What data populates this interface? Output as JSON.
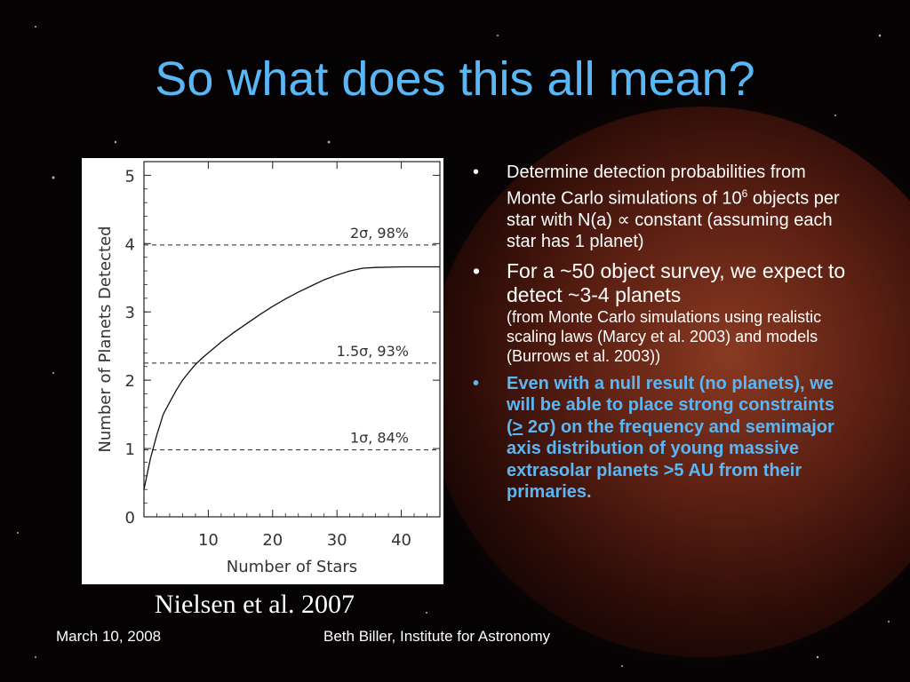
{
  "slide": {
    "title": "So what does this all mean?",
    "caption": "Nielsen et al. 2007",
    "footer_date": "March 10, 2008",
    "footer_author": "Beth Biller, Institute for Astronomy",
    "colors": {
      "title": "#5ab7f5",
      "highlight": "#5ab7f5",
      "background": "#050203"
    }
  },
  "bullets": {
    "b1_text_a": "Determine detection probabilities from Monte Carlo simulations of 10",
    "b1_sup": "6",
    "b1_text_b": " objects per star with N(a) ∝ constant (assuming each star has 1 planet)",
    "b2_main": "For a ~50 object survey, we expect to detect ~3-4 planets",
    "b2_small": "(from Monte Carlo simulations using realistic scaling laws  (Marcy et al. 2003) and models (Burrows et al. 2003))",
    "b3_text_a": "Even with a null result (no planets), we will be able to place strong constraints (",
    "b3_ge": ">",
    "b3_text_b": " 2σ) on the frequency and semimajor axis distribution of young massive extrasolar planets >5 AU from their primaries.",
    "marker": "•"
  },
  "chart_data": {
    "type": "line",
    "xlabel": "Number of Stars",
    "ylabel": "Number of Planets Detected",
    "xlim": [
      0,
      46
    ],
    "ylim": [
      0,
      5.2
    ],
    "xticks": [
      "10",
      "20",
      "30",
      "40"
    ],
    "xtick_values": [
      10,
      20,
      30,
      40
    ],
    "yticks": [
      "0",
      "1",
      "2",
      "3",
      "4",
      "5"
    ],
    "ytick_values": [
      0,
      1,
      2,
      3,
      4,
      5
    ],
    "series": [
      {
        "x": [
          0,
          1,
          2,
          3,
          4,
          5,
          6,
          7,
          8,
          9,
          10,
          12,
          14,
          16,
          18,
          20,
          22,
          24,
          26,
          28,
          30,
          32,
          34,
          36,
          40,
          46
        ],
        "y": [
          0.4,
          0.85,
          1.2,
          1.5,
          1.68,
          1.85,
          2.0,
          2.12,
          2.23,
          2.32,
          2.4,
          2.56,
          2.7,
          2.83,
          2.96,
          3.08,
          3.19,
          3.29,
          3.38,
          3.47,
          3.54,
          3.6,
          3.64,
          3.65,
          3.66,
          3.66
        ]
      }
    ],
    "annotations": [
      {
        "y": 3.98,
        "label": "2σ, 98%"
      },
      {
        "y": 2.25,
        "label": "1.5σ, 93%"
      },
      {
        "y": 0.98,
        "label": "1σ, 84%"
      }
    ]
  }
}
